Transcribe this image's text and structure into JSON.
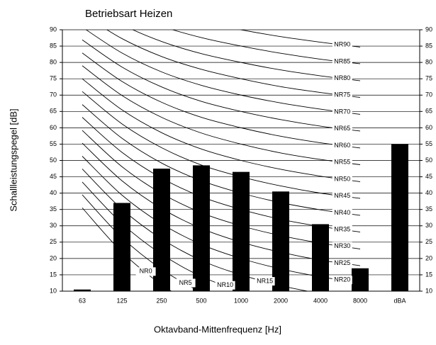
{
  "chart_data": {
    "type": "bar",
    "title": "Betriebsart Heizen",
    "x_label": "Oktavband-Mittenfrequenz [Hz]",
    "y_label": "Schallleistungspegel [dB]",
    "categories": [
      "63",
      "125",
      "250",
      "500",
      "1000",
      "2000",
      "4000",
      "8000",
      "dBA"
    ],
    "values": [
      10.5,
      37,
      47.5,
      48.5,
      46.5,
      40.5,
      30.5,
      17,
      55
    ],
    "color": "#000000",
    "ylim": [
      10,
      90
    ],
    "yticks": [
      10,
      15,
      20,
      25,
      30,
      35,
      40,
      45,
      50,
      55,
      60,
      65,
      70,
      75,
      80,
      85,
      90
    ],
    "grid": true,
    "nr_curves": [
      {
        "name": "NR0",
        "values": [
          35.5,
          22,
          12,
          4.8,
          0,
          -3.5,
          -6.1,
          -8
        ]
      },
      {
        "name": "NR5",
        "values": [
          39.5,
          26.4,
          16.7,
          9.7,
          5,
          1.6,
          -1.0,
          -2.9
        ]
      },
      {
        "name": "NR10",
        "values": [
          43.4,
          30.7,
          21.3,
          14.5,
          10,
          6.7,
          4.2,
          2.3
        ]
      },
      {
        "name": "NR15",
        "values": [
          47.4,
          35.1,
          26.0,
          19.4,
          15,
          11.7,
          9.3,
          7.5
        ]
      },
      {
        "name": "NR20",
        "values": [
          51.3,
          39.4,
          30.6,
          24.3,
          20,
          16.8,
          14.4,
          12.6
        ]
      },
      {
        "name": "NR25",
        "values": [
          55.3,
          43.8,
          35.3,
          29.2,
          25,
          21.9,
          19.5,
          17.8
        ]
      },
      {
        "name": "NR30",
        "values": [
          59.2,
          48.1,
          39.9,
          34.0,
          30,
          27.0,
          24.7,
          22.9
        ]
      },
      {
        "name": "NR35",
        "values": [
          63.2,
          52.5,
          44.6,
          38.9,
          35,
          32.0,
          29.8,
          28.1
        ]
      },
      {
        "name": "NR40",
        "values": [
          67.1,
          56.8,
          49.2,
          43.8,
          40,
          37.1,
          34.9,
          33.2
        ]
      },
      {
        "name": "NR45",
        "values": [
          71.1,
          61.2,
          53.9,
          48.6,
          45,
          42.2,
          40.0,
          38.4
        ]
      },
      {
        "name": "NR50",
        "values": [
          75.0,
          65.5,
          58.5,
          53.5,
          50,
          47.3,
          45.2,
          43.5
        ]
      },
      {
        "name": "NR55",
        "values": [
          79.0,
          69.9,
          63.2,
          58.4,
          55,
          52.3,
          50.3,
          48.7
        ]
      },
      {
        "name": "NR60",
        "values": [
          82.9,
          74.2,
          67.8,
          63.2,
          60,
          57.4,
          55.4,
          53.8
        ]
      },
      {
        "name": "NR65",
        "values": [
          86.9,
          78.6,
          72.5,
          68.1,
          65,
          62.5,
          60.5,
          59.0
        ]
      },
      {
        "name": "NR70",
        "values": [
          90.8,
          82.9,
          77.1,
          73.0,
          70,
          67.6,
          65.7,
          64.1
        ]
      },
      {
        "name": "NR75",
        "values": [
          94.8,
          87.3,
          81.8,
          77.9,
          75,
          72.6,
          70.8,
          69.3
        ]
      },
      {
        "name": "NR80",
        "values": [
          98.7,
          91.6,
          86.4,
          82.7,
          80,
          77.7,
          75.9,
          74.4
        ]
      },
      {
        "name": "NR85",
        "values": [
          102.7,
          96.0,
          91.1,
          87.6,
          85,
          82.8,
          81.0,
          79.6
        ]
      },
      {
        "name": "NR90",
        "values": [
          106.6,
          100.3,
          95.7,
          92.5,
          90,
          87.9,
          86.2,
          84.7
        ]
      }
    ]
  }
}
